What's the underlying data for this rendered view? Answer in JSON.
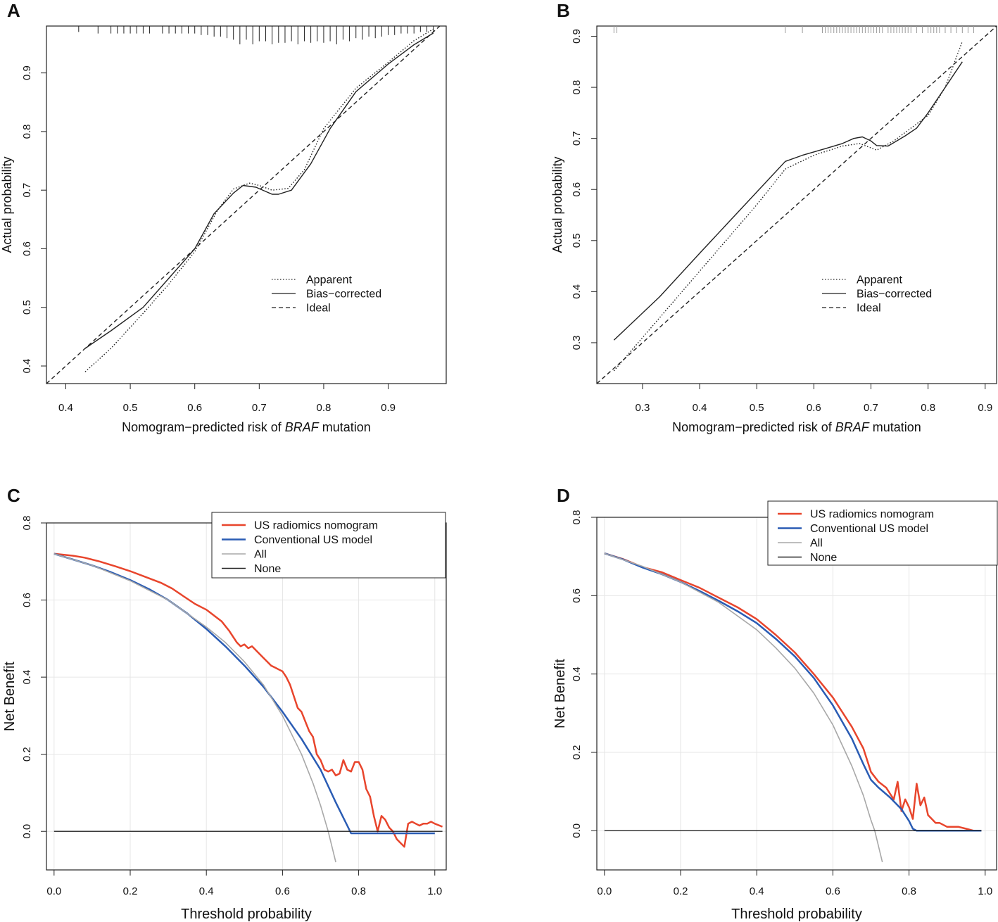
{
  "figure": {
    "panels": [
      "A",
      "B",
      "C",
      "D"
    ]
  },
  "chart_data": [
    {
      "panel": "A",
      "type": "line",
      "title": "",
      "xlabel_prefix": "Nomogram−predicted risk of ",
      "xlabel_italic": "BRAF",
      "xlabel_suffix": " mutation",
      "ylabel": "Actual probability",
      "xlim": [
        0.37,
        0.99
      ],
      "ylim": [
        0.37,
        0.98
      ],
      "xticks": [
        0.4,
        0.5,
        0.6,
        0.7,
        0.8,
        0.9
      ],
      "xtick_labels": [
        "0.4",
        "0.5",
        "0.6",
        "0.7",
        "0.8",
        "0.9"
      ],
      "yticks": [
        0.4,
        0.5,
        0.6,
        0.7,
        0.8,
        0.9
      ],
      "ytick_labels": [
        "0.4",
        "0.5",
        "0.6",
        "0.7",
        "0.8",
        "0.9"
      ],
      "legend": {
        "position": "lower-right",
        "entries": [
          "Apparent",
          "Bias−corrected",
          "Ideal"
        ]
      },
      "series": [
        {
          "name": "Apparent",
          "style": "dotted",
          "x": [
            0.43,
            0.47,
            0.52,
            0.56,
            0.6,
            0.635,
            0.66,
            0.685,
            0.7,
            0.72,
            0.745,
            0.77,
            0.8,
            0.85,
            0.9,
            0.94,
            0.97
          ],
          "y": [
            0.39,
            0.43,
            0.49,
            0.54,
            0.595,
            0.665,
            0.702,
            0.712,
            0.708,
            0.7,
            0.703,
            0.735,
            0.805,
            0.874,
            0.918,
            0.955,
            0.975
          ]
        },
        {
          "name": "Bias−corrected",
          "style": "solid",
          "x": [
            0.43,
            0.47,
            0.52,
            0.56,
            0.6,
            0.63,
            0.66,
            0.675,
            0.695,
            0.72,
            0.73,
            0.75,
            0.78,
            0.81,
            0.85,
            0.9,
            0.94,
            0.97
          ],
          "y": [
            0.43,
            0.46,
            0.5,
            0.55,
            0.6,
            0.66,
            0.695,
            0.708,
            0.705,
            0.693,
            0.693,
            0.7,
            0.745,
            0.805,
            0.868,
            0.915,
            0.948,
            0.968
          ]
        },
        {
          "name": "Ideal",
          "style": "dashed",
          "x": [
            0.37,
            0.99
          ],
          "y": [
            0.37,
            0.99
          ]
        }
      ],
      "rug_x": [
        0.37,
        0.42,
        0.45,
        0.47,
        0.48,
        0.49,
        0.5,
        0.51,
        0.52,
        0.53,
        0.55,
        0.56,
        0.57,
        0.58,
        0.59,
        0.6,
        0.61,
        0.62,
        0.63,
        0.64,
        0.65,
        0.66,
        0.67,
        0.68,
        0.69,
        0.7,
        0.71,
        0.72,
        0.73,
        0.74,
        0.75,
        0.76,
        0.77,
        0.78,
        0.79,
        0.8,
        0.81,
        0.82,
        0.83,
        0.84,
        0.85,
        0.86,
        0.87,
        0.88,
        0.89,
        0.9,
        0.91,
        0.92,
        0.93,
        0.94,
        0.95,
        0.96,
        0.97
      ],
      "rug_h": [
        0.2,
        0.2,
        0.3,
        0.3,
        0.3,
        0.3,
        0.3,
        0.3,
        0.3,
        0.3,
        0.3,
        0.3,
        0.3,
        0.3,
        0.3,
        0.3,
        0.4,
        0.4,
        0.5,
        0.5,
        0.6,
        0.7,
        1.0,
        0.7,
        1.0,
        0.8,
        0.8,
        1.0,
        0.9,
        0.9,
        0.8,
        1.0,
        0.8,
        0.9,
        0.8,
        0.9,
        0.8,
        1.0,
        0.7,
        0.8,
        0.6,
        0.7,
        0.5,
        0.6,
        0.5,
        0.4,
        0.4,
        0.3,
        0.3,
        0.3,
        0.2,
        0.2,
        0.2
      ]
    },
    {
      "panel": "B",
      "type": "line",
      "title": "",
      "xlabel_prefix": "Nomogram−predicted risk of ",
      "xlabel_italic": "BRAF",
      "xlabel_suffix": " mutation",
      "ylabel": "Actual probability",
      "xlim": [
        0.22,
        0.92
      ],
      "ylim": [
        0.22,
        0.92
      ],
      "xticks": [
        0.3,
        0.4,
        0.5,
        0.6,
        0.7,
        0.8,
        0.9
      ],
      "xtick_labels": [
        "0.3",
        "0.4",
        "0.5",
        "0.6",
        "0.7",
        "0.8",
        "0.9"
      ],
      "yticks": [
        0.3,
        0.4,
        0.5,
        0.6,
        0.7,
        0.8,
        0.9
      ],
      "ytick_labels": [
        "0.3",
        "0.4",
        "0.5",
        "0.6",
        "0.7",
        "0.8",
        "0.9"
      ],
      "legend": {
        "position": "lower-right",
        "entries": [
          "Apparent",
          "Bias−corrected",
          "Ideal"
        ]
      },
      "series": [
        {
          "name": "Apparent",
          "style": "dotted",
          "x": [
            0.25,
            0.3,
            0.35,
            0.4,
            0.45,
            0.5,
            0.55,
            0.6,
            0.65,
            0.68,
            0.71,
            0.74,
            0.77,
            0.8,
            0.83,
            0.86
          ],
          "y": [
            0.245,
            0.31,
            0.375,
            0.44,
            0.505,
            0.57,
            0.64,
            0.667,
            0.685,
            0.69,
            0.677,
            0.695,
            0.72,
            0.745,
            0.8,
            0.89
          ]
        },
        {
          "name": "Bias−corrected",
          "style": "solid",
          "x": [
            0.25,
            0.33,
            0.4,
            0.45,
            0.5,
            0.55,
            0.58,
            0.62,
            0.65,
            0.67,
            0.685,
            0.7,
            0.71,
            0.73,
            0.76,
            0.78,
            0.8,
            0.83,
            0.86
          ],
          "y": [
            0.305,
            0.39,
            0.475,
            0.535,
            0.595,
            0.655,
            0.667,
            0.68,
            0.69,
            0.7,
            0.703,
            0.695,
            0.686,
            0.685,
            0.705,
            0.72,
            0.75,
            0.8,
            0.85
          ]
        },
        {
          "name": "Ideal",
          "style": "dashed",
          "x": [
            0.22,
            0.92
          ],
          "y": [
            0.22,
            0.92
          ]
        }
      ],
      "rug_x": [
        0.25,
        0.255,
        0.55,
        0.58,
        0.615,
        0.62,
        0.625,
        0.63,
        0.635,
        0.64,
        0.645,
        0.65,
        0.655,
        0.66,
        0.665,
        0.67,
        0.675,
        0.68,
        0.685,
        0.69,
        0.695,
        0.7,
        0.705,
        0.71,
        0.715,
        0.72,
        0.73,
        0.735,
        0.74,
        0.745,
        0.75,
        0.755,
        0.76,
        0.765,
        0.77,
        0.78,
        0.79,
        0.8,
        0.805,
        0.81,
        0.815,
        0.82,
        0.83,
        0.84,
        0.85,
        0.86,
        0.87,
        0.88
      ],
      "rug_h": [
        1,
        1,
        1,
        1,
        1,
        1,
        1,
        1,
        1,
        1,
        1,
        1,
        1,
        1,
        1,
        1,
        1,
        1,
        1,
        1,
        1,
        1,
        1,
        1,
        1,
        1,
        1,
        1,
        1,
        1,
        1,
        1,
        1,
        1,
        1,
        1,
        1,
        1,
        1,
        1,
        1,
        1,
        1,
        1,
        1,
        1,
        1,
        1
      ]
    },
    {
      "panel": "C",
      "type": "line",
      "title": "",
      "xlabel": "Threshold probability",
      "ylabel": "Net Benefit",
      "xlim": [
        -0.02,
        1.03
      ],
      "ylim": [
        -0.1,
        0.8
      ],
      "xticks": [
        0.0,
        0.2,
        0.4,
        0.6,
        0.8,
        1.0
      ],
      "xtick_labels": [
        "0.0",
        "0.2",
        "0.4",
        "0.6",
        "0.8",
        "1.0"
      ],
      "yticks": [
        0.0,
        0.2,
        0.4,
        0.6,
        0.8
      ],
      "ytick_labels": [
        "0.0",
        "0.2",
        "0.4",
        "0.6",
        "0.8"
      ],
      "grid": true,
      "legend": {
        "position": "top-right",
        "entries": [
          "US radiomics nomogram",
          "Conventional US model",
          "All",
          "None"
        ]
      },
      "series": [
        {
          "name": "US radiomics nomogram",
          "color": "#e8452c",
          "x": [
            0.0,
            0.05,
            0.08,
            0.12,
            0.16,
            0.2,
            0.24,
            0.28,
            0.31,
            0.34,
            0.37,
            0.4,
            0.42,
            0.44,
            0.46,
            0.48,
            0.49,
            0.5,
            0.51,
            0.52,
            0.53,
            0.54,
            0.55,
            0.56,
            0.57,
            0.58,
            0.59,
            0.6,
            0.61,
            0.62,
            0.63,
            0.64,
            0.65,
            0.66,
            0.67,
            0.68,
            0.69,
            0.7,
            0.71,
            0.72,
            0.73,
            0.74,
            0.75,
            0.76,
            0.77,
            0.78,
            0.79,
            0.8,
            0.81,
            0.82,
            0.83,
            0.84,
            0.85,
            0.86,
            0.87,
            0.88,
            0.89,
            0.9,
            0.91,
            0.92,
            0.93,
            0.94,
            0.95,
            0.96,
            0.97,
            0.98,
            0.99,
            1.0,
            1.02
          ],
          "y": [
            0.72,
            0.715,
            0.71,
            0.7,
            0.688,
            0.675,
            0.66,
            0.645,
            0.63,
            0.61,
            0.59,
            0.575,
            0.56,
            0.545,
            0.52,
            0.49,
            0.48,
            0.485,
            0.475,
            0.48,
            0.47,
            0.46,
            0.45,
            0.44,
            0.43,
            0.425,
            0.42,
            0.415,
            0.4,
            0.38,
            0.35,
            0.32,
            0.31,
            0.285,
            0.26,
            0.245,
            0.2,
            0.185,
            0.16,
            0.155,
            0.16,
            0.145,
            0.15,
            0.185,
            0.16,
            0.155,
            0.18,
            0.18,
            0.16,
            0.11,
            0.09,
            0.04,
            0.0,
            0.04,
            0.03,
            0.01,
            0.0,
            -0.02,
            -0.03,
            -0.04,
            0.02,
            0.025,
            0.02,
            0.015,
            0.02,
            0.02,
            0.025,
            0.02,
            0.012
          ]
        },
        {
          "name": "Conventional US model",
          "color": "#2a5cb4",
          "x": [
            0.0,
            0.05,
            0.1,
            0.15,
            0.2,
            0.25,
            0.3,
            0.35,
            0.4,
            0.45,
            0.5,
            0.55,
            0.6,
            0.65,
            0.7,
            0.74,
            0.77,
            0.78,
            0.8,
            0.85,
            0.9,
            0.95,
            1.0
          ],
          "y": [
            0.72,
            0.705,
            0.69,
            0.672,
            0.652,
            0.628,
            0.6,
            0.565,
            0.525,
            0.48,
            0.43,
            0.375,
            0.31,
            0.24,
            0.16,
            0.075,
            0.015,
            -0.005,
            -0.005,
            -0.005,
            -0.005,
            -0.005,
            -0.005
          ]
        },
        {
          "name": "All",
          "color": "#a8a8a8",
          "x": [
            0.0,
            0.1,
            0.2,
            0.3,
            0.4,
            0.45,
            0.5,
            0.55,
            0.6,
            0.65,
            0.68,
            0.7,
            0.72,
            0.74
          ],
          "y": [
            0.72,
            0.69,
            0.65,
            0.6,
            0.53,
            0.49,
            0.44,
            0.38,
            0.3,
            0.2,
            0.125,
            0.067,
            0.0,
            -0.08
          ]
        },
        {
          "name": "None",
          "color": "#222222",
          "x": [
            0.0,
            1.02
          ],
          "y": [
            0.0,
            0.0
          ]
        }
      ]
    },
    {
      "panel": "D",
      "type": "line",
      "title": "",
      "xlabel": "Threshold probability",
      "ylabel": "Net Benefit",
      "xlim": [
        -0.02,
        1.03
      ],
      "ylim": [
        -0.1,
        0.8
      ],
      "xticks": [
        0.0,
        0.2,
        0.4,
        0.6,
        0.8,
        1.0
      ],
      "xtick_labels": [
        "0.0",
        "0.2",
        "0.4",
        "0.6",
        "0.8",
        "1.0"
      ],
      "yticks": [
        0.0,
        0.2,
        0.4,
        0.6,
        0.8
      ],
      "ytick_labels": [
        "0.0",
        "0.2",
        "0.4",
        "0.6",
        "0.8"
      ],
      "grid": true,
      "legend": {
        "position": "top-right",
        "entries": [
          "US radiomics nomogram",
          "Conventional US model",
          "All",
          "None"
        ]
      },
      "series": [
        {
          "name": "US radiomics nomogram",
          "color": "#e8452c",
          "x": [
            0.0,
            0.05,
            0.1,
            0.15,
            0.2,
            0.25,
            0.3,
            0.35,
            0.4,
            0.45,
            0.5,
            0.55,
            0.6,
            0.65,
            0.68,
            0.7,
            0.72,
            0.74,
            0.75,
            0.76,
            0.77,
            0.78,
            0.79,
            0.8,
            0.81,
            0.82,
            0.83,
            0.84,
            0.85,
            0.86,
            0.87,
            0.88,
            0.9,
            0.93,
            0.95,
            0.97,
            0.99
          ],
          "y": [
            0.708,
            0.693,
            0.673,
            0.66,
            0.64,
            0.62,
            0.595,
            0.57,
            0.54,
            0.5,
            0.455,
            0.4,
            0.34,
            0.265,
            0.21,
            0.15,
            0.125,
            0.11,
            0.095,
            0.08,
            0.125,
            0.05,
            0.08,
            0.06,
            0.03,
            0.12,
            0.065,
            0.085,
            0.04,
            0.03,
            0.02,
            0.02,
            0.01,
            0.01,
            0.005,
            0.0,
            0.0
          ]
        },
        {
          "name": "Conventional US model",
          "color": "#2a5cb4",
          "x": [
            0.0,
            0.05,
            0.1,
            0.15,
            0.2,
            0.25,
            0.3,
            0.35,
            0.4,
            0.45,
            0.5,
            0.55,
            0.6,
            0.65,
            0.68,
            0.7,
            0.72,
            0.75,
            0.78,
            0.8,
            0.81,
            0.82,
            0.85,
            0.9,
            0.95,
            0.99
          ],
          "y": [
            0.708,
            0.692,
            0.672,
            0.655,
            0.635,
            0.612,
            0.587,
            0.56,
            0.53,
            0.49,
            0.445,
            0.39,
            0.32,
            0.235,
            0.17,
            0.13,
            0.11,
            0.085,
            0.055,
            0.025,
            0.005,
            0.0,
            0.0,
            0.0,
            0.0,
            0.0
          ]
        },
        {
          "name": "All",
          "color": "#a8a8a8",
          "x": [
            0.0,
            0.1,
            0.2,
            0.3,
            0.4,
            0.45,
            0.5,
            0.55,
            0.6,
            0.65,
            0.68,
            0.7,
            0.71,
            0.73
          ],
          "y": [
            0.708,
            0.675,
            0.635,
            0.583,
            0.513,
            0.467,
            0.415,
            0.351,
            0.27,
            0.165,
            0.09,
            0.027,
            0.0,
            -0.08
          ]
        },
        {
          "name": "None",
          "color": "#222222",
          "x": [
            0.0,
            0.99
          ],
          "y": [
            0.0,
            0.0
          ]
        }
      ]
    }
  ]
}
